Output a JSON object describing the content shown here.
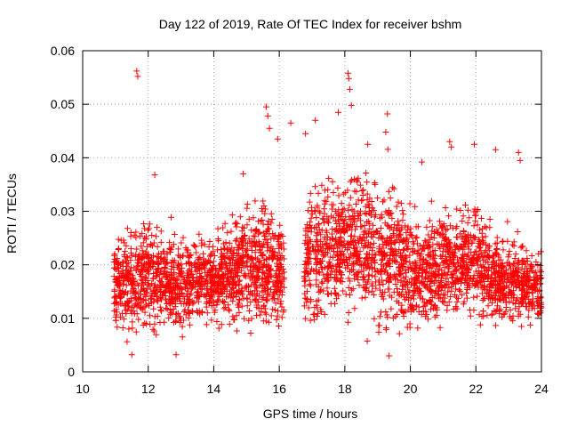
{
  "chart_data": {
    "type": "scatter",
    "title": "Day 122 of 2019, Rate Of TEC Index for receiver bshm",
    "xlabel": "GPS time / hours",
    "ylabel": "ROTI / TECUs",
    "xlim": [
      10,
      24
    ],
    "ylim": [
      0,
      0.06
    ],
    "x_ticks": [
      10,
      12,
      14,
      16,
      18,
      20,
      22,
      24
    ],
    "y_ticks": [
      0,
      0.01,
      0.02,
      0.03,
      0.04,
      0.05,
      0.06
    ],
    "x_tick_labels": [
      "10",
      "12",
      "14",
      "16",
      "18",
      "20",
      "22",
      "24"
    ],
    "y_tick_labels": [
      "0",
      "0.01",
      "0.02",
      "0.03",
      "0.04",
      "0.05",
      "0.06"
    ],
    "grid": true,
    "marker": "+",
    "color": "#ff0000",
    "series": [
      {
        "name": "ROTI",
        "generator": {
          "x_start": 10.95,
          "x_end": 24.0,
          "count": 3600,
          "seed": 12345,
          "gap": [
            16.15,
            16.75
          ],
          "envelope_x": [
            10.95,
            11.5,
            12.0,
            12.5,
            13.0,
            13.5,
            14.0,
            14.5,
            15.0,
            15.5,
            16.0,
            16.15,
            16.75,
            17.0,
            17.5,
            18.0,
            18.5,
            19.0,
            19.5,
            20.0,
            20.5,
            21.0,
            21.5,
            22.0,
            22.5,
            23.0,
            23.5,
            24.0
          ],
          "envelope_lo": [
            0.006,
            0.004,
            0.004,
            0.005,
            0.005,
            0.006,
            0.006,
            0.005,
            0.005,
            0.005,
            0.006,
            0.006,
            0.006,
            0.006,
            0.007,
            0.006,
            0.005,
            0.004,
            0.004,
            0.005,
            0.006,
            0.006,
            0.006,
            0.006,
            0.006,
            0.007,
            0.007,
            0.007
          ],
          "envelope_hi": [
            0.024,
            0.03,
            0.032,
            0.028,
            0.026,
            0.027,
            0.028,
            0.03,
            0.033,
            0.035,
            0.032,
            0.03,
            0.032,
            0.036,
            0.038,
            0.04,
            0.041,
            0.04,
            0.038,
            0.033,
            0.03,
            0.035,
            0.033,
            0.034,
            0.028,
            0.026,
            0.025,
            0.022
          ]
        },
        "outliers": [
          {
            "x": 11.65,
            "y": 0.0562
          },
          {
            "x": 11.68,
            "y": 0.0552
          },
          {
            "x": 15.6,
            "y": 0.0495
          },
          {
            "x": 15.65,
            "y": 0.0478
          },
          {
            "x": 15.7,
            "y": 0.0455
          },
          {
            "x": 15.95,
            "y": 0.0435
          },
          {
            "x": 16.35,
            "y": 0.0465
          },
          {
            "x": 16.8,
            "y": 0.0445
          },
          {
            "x": 17.1,
            "y": 0.047
          },
          {
            "x": 17.8,
            "y": 0.0485
          },
          {
            "x": 18.1,
            "y": 0.0558
          },
          {
            "x": 18.12,
            "y": 0.0548
          },
          {
            "x": 18.15,
            "y": 0.0528
          },
          {
            "x": 18.2,
            "y": 0.0498
          },
          {
            "x": 18.7,
            "y": 0.0425
          },
          {
            "x": 19.3,
            "y": 0.0482
          },
          {
            "x": 19.25,
            "y": 0.0448
          },
          {
            "x": 20.35,
            "y": 0.0392
          },
          {
            "x": 21.2,
            "y": 0.043
          },
          {
            "x": 21.25,
            "y": 0.042
          },
          {
            "x": 21.95,
            "y": 0.0425
          },
          {
            "x": 22.6,
            "y": 0.0415
          },
          {
            "x": 23.3,
            "y": 0.041
          },
          {
            "x": 23.35,
            "y": 0.0395
          },
          {
            "x": 12.2,
            "y": 0.0368
          },
          {
            "x": 14.9,
            "y": 0.037
          },
          {
            "x": 11.5,
            "y": 0.0032
          },
          {
            "x": 12.85,
            "y": 0.0032
          },
          {
            "x": 19.35,
            "y": 0.003
          }
        ]
      }
    ]
  }
}
